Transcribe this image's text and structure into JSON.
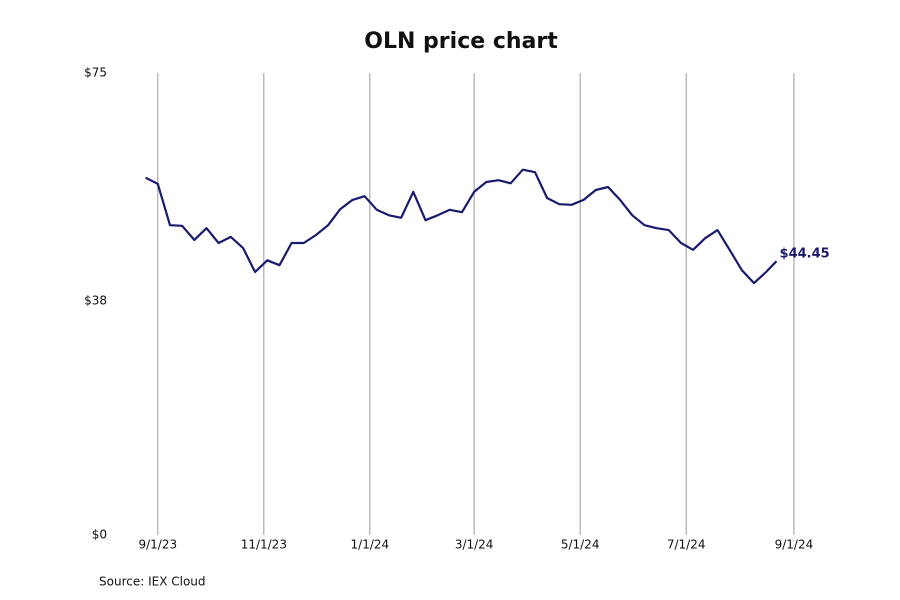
{
  "chart_data": {
    "type": "line",
    "title": "OLN price chart",
    "source": "Source: IEX Cloud",
    "x": [
      "2023-08-25",
      "2023-09-01",
      "2023-09-08",
      "2023-09-15",
      "2023-09-22",
      "2023-09-29",
      "2023-10-06",
      "2023-10-13",
      "2023-10-20",
      "2023-10-27",
      "2023-11-03",
      "2023-11-10",
      "2023-11-17",
      "2023-11-24",
      "2023-12-01",
      "2023-12-08",
      "2023-12-15",
      "2023-12-22",
      "2023-12-29",
      "2024-01-05",
      "2024-01-12",
      "2024-01-19",
      "2024-01-26",
      "2024-02-02",
      "2024-02-09",
      "2024-02-16",
      "2024-02-23",
      "2024-03-01",
      "2024-03-08",
      "2024-03-15",
      "2024-03-22",
      "2024-03-29",
      "2024-04-05",
      "2024-04-12",
      "2024-04-19",
      "2024-04-26",
      "2024-05-03",
      "2024-05-10",
      "2024-05-17",
      "2024-05-24",
      "2024-05-31",
      "2024-06-07",
      "2024-06-14",
      "2024-06-21",
      "2024-06-28",
      "2024-07-05",
      "2024-07-12",
      "2024-07-19",
      "2024-07-26",
      "2024-08-02",
      "2024-08-09",
      "2024-08-16",
      "2024-08-22"
    ],
    "values": [
      58.0,
      57.0,
      50.3,
      50.2,
      47.9,
      49.8,
      47.4,
      48.4,
      46.6,
      42.7,
      44.6,
      43.8,
      47.4,
      47.4,
      48.7,
      50.3,
      52.9,
      54.4,
      55.0,
      52.8,
      51.9,
      51.5,
      55.7,
      51.1,
      51.9,
      52.8,
      52.4,
      55.7,
      57.3,
      57.6,
      57.1,
      59.3,
      58.9,
      54.7,
      53.7,
      53.6,
      54.4,
      56.0,
      56.5,
      54.4,
      51.9,
      50.3,
      49.8,
      49.5,
      47.4,
      46.3,
      48.2,
      49.5,
      46.3,
      43.0,
      40.9,
      42.7,
      44.45
    ],
    "value_labels": [
      null,
      null,
      null,
      null,
      null,
      null,
      null,
      null,
      null,
      null,
      null,
      null,
      null,
      null,
      null,
      null,
      null,
      null,
      null,
      null,
      null,
      null,
      null,
      null,
      null,
      null,
      null,
      null,
      null,
      null,
      null,
      null,
      null,
      null,
      null,
      null,
      null,
      null,
      null,
      null,
      null,
      null,
      null,
      null,
      null,
      null,
      null,
      null,
      null,
      null,
      null,
      null,
      "$44.45"
    ],
    "color": "#1a1a6e",
    "xlim": [
      "2023-08-16",
      "2024-09-16"
    ],
    "xticks": [
      {
        "value": "2023-09-01",
        "label": "9/1/23"
      },
      {
        "value": "2023-11-01",
        "label": "11/1/23"
      },
      {
        "value": "2024-01-01",
        "label": "1/1/24"
      },
      {
        "value": "2024-03-01",
        "label": "3/1/24"
      },
      {
        "value": "2024-05-01",
        "label": "5/1/24"
      },
      {
        "value": "2024-07-01",
        "label": "7/1/24"
      },
      {
        "value": "2024-09-01",
        "label": "9/1/24"
      }
    ],
    "ylim": [
      0,
      75
    ],
    "yticks": [
      {
        "value": 0,
        "label": "$0"
      },
      {
        "value": 38,
        "label": "$38"
      },
      {
        "value": 75,
        "label": "$75"
      }
    ],
    "grid": true
  }
}
